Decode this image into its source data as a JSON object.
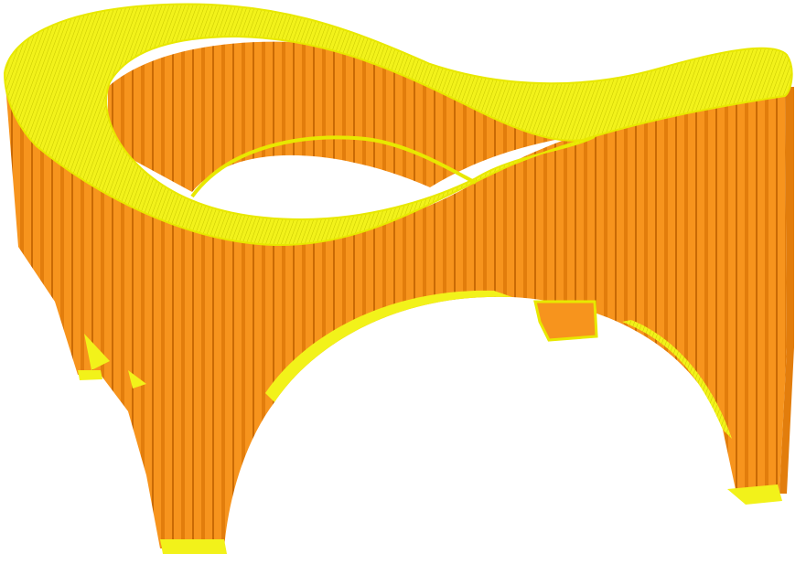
{
  "scene": {
    "description_type": "3d-print-preview",
    "colors": {
      "background": "#ffffff",
      "wall_fill": "#f7941d",
      "wall_stripe": "#e27d0c",
      "wall_stripe_dark": "#c96a05",
      "top_surface": "#f2f21a",
      "top_surface_line": "#c7c700",
      "outline": "#e8e800"
    }
  }
}
